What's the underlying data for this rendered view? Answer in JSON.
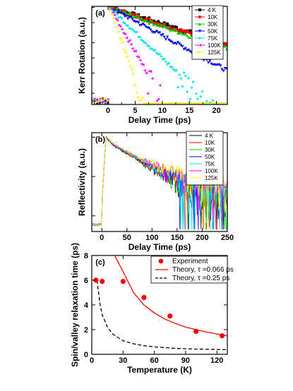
{
  "chart_data": [
    {
      "panel": "(a)",
      "type": "scatter",
      "ylabel": "Kerr Rotation (a.u.)",
      "xlabel": "Delay Time (ps)",
      "xlim": [
        -3,
        22
      ],
      "xticks": [
        0,
        5,
        10,
        15,
        20
      ],
      "yscale": "log",
      "legend": "top-right",
      "series": [
        {
          "name": "4 K",
          "color": "#000000",
          "marker": "square",
          "peak_x": 0.3,
          "decay_ps": 13.0,
          "points": [
            [
              -1.0,
              0.02
            ],
            [
              0.3,
              1.0
            ],
            [
              2,
              0.88
            ],
            [
              4,
              0.74
            ],
            [
              6,
              0.63
            ],
            [
              8,
              0.54
            ],
            [
              10,
              0.46
            ],
            [
              12,
              0.39
            ],
            [
              14,
              0.33
            ],
            [
              16,
              0.29
            ],
            [
              18,
              0.25
            ],
            [
              20,
              0.21
            ],
            [
              22,
              0.18
            ]
          ]
        },
        {
          "name": "10K",
          "color": "#ff0000",
          "marker": "circle",
          "peak_x": 0.3,
          "decay_ps": 12.5,
          "points": [
            [
              0.3,
              1.0
            ],
            [
              2,
              0.87
            ],
            [
              4,
              0.73
            ],
            [
              6,
              0.62
            ],
            [
              8,
              0.52
            ],
            [
              10,
              0.44
            ],
            [
              12,
              0.38
            ],
            [
              14,
              0.32
            ],
            [
              16,
              0.28
            ],
            [
              18,
              0.24
            ],
            [
              20,
              0.2
            ],
            [
              22,
              0.17
            ]
          ]
        },
        {
          "name": "30K",
          "color": "#00cc00",
          "marker": "triangle-up",
          "peak_x": 0.3,
          "decay_ps": 11.5,
          "points": [
            [
              0.3,
              1.0
            ],
            [
              2,
              0.85
            ],
            [
              4,
              0.71
            ],
            [
              6,
              0.59
            ],
            [
              8,
              0.5
            ],
            [
              10,
              0.42
            ],
            [
              12,
              0.35
            ],
            [
              14,
              0.3
            ],
            [
              16,
              0.25
            ],
            [
              18,
              0.21
            ],
            [
              20,
              0.18
            ],
            [
              22,
              0.15
            ]
          ]
        },
        {
          "name": "50K",
          "color": "#0000ff",
          "marker": "triangle-down",
          "peak_x": 0.3,
          "decay_ps": 7.5,
          "points": [
            [
              0.3,
              1.0
            ],
            [
              2,
              0.78
            ],
            [
              4,
              0.59
            ],
            [
              6,
              0.45
            ],
            [
              8,
              0.35
            ],
            [
              10,
              0.27
            ],
            [
              12,
              0.2
            ],
            [
              14,
              0.16
            ],
            [
              16,
              0.12
            ],
            [
              18,
              0.09
            ],
            [
              20,
              0.07
            ]
          ]
        },
        {
          "name": "75K",
          "color": "#00e5e5",
          "marker": "diamond",
          "peak_x": 0.3,
          "decay_ps": 4.2,
          "points": [
            [
              0.3,
              1.0
            ],
            [
              2,
              0.67
            ],
            [
              4,
              0.39
            ],
            [
              6,
              0.24
            ],
            [
              8,
              0.15
            ],
            [
              10,
              0.09
            ],
            [
              12,
              0.05
            ],
            [
              14,
              0.035
            ],
            [
              16,
              0.028
            ]
          ]
        },
        {
          "name": "100K",
          "color": "#ff00ff",
          "marker": "triangle-left",
          "peak_x": 0.3,
          "decay_ps": 2.3,
          "points": [
            [
              0.3,
              1.0
            ],
            [
              1,
              0.74
            ],
            [
              2,
              0.45
            ],
            [
              3,
              0.3
            ],
            [
              4,
              0.2
            ],
            [
              5,
              0.13
            ],
            [
              6,
              0.08
            ],
            [
              7,
              0.05
            ],
            [
              8,
              0.03
            ]
          ]
        },
        {
          "name": "125K",
          "color": "#ffff00",
          "marker": "triangle-right",
          "peak_x": 0.3,
          "decay_ps": 1.5,
          "points": [
            [
              0.3,
              1.0
            ],
            [
              1,
              0.64
            ],
            [
              2,
              0.33
            ],
            [
              3,
              0.18
            ],
            [
              4,
              0.1
            ],
            [
              5,
              0.06
            ],
            [
              6,
              0.035
            ]
          ]
        }
      ]
    },
    {
      "panel": "(b)",
      "type": "line",
      "ylabel": "Reflectivity (a.u.)",
      "xlabel": "Delay Time (ps)",
      "xlim": [
        -20,
        250
      ],
      "xticks": [
        0,
        50,
        100,
        150,
        200,
        250
      ],
      "yscale": "log",
      "legend": "top-right",
      "series": [
        {
          "name": "4 K",
          "color": "#000000",
          "peak_x": 8,
          "values_at": [
            [
              0,
              0.02
            ],
            [
              8,
              1.0
            ],
            [
              25,
              0.6
            ],
            [
              50,
              0.38
            ],
            [
              100,
              0.16
            ],
            [
              150,
              0.08
            ],
            [
              200,
              0.04
            ],
            [
              250,
              0.025
            ]
          ]
        },
        {
          "name": "10K",
          "color": "#ff0000",
          "peak_x": 8,
          "values_at": [
            [
              0,
              0.02
            ],
            [
              8,
              1.0
            ],
            [
              25,
              0.6
            ],
            [
              50,
              0.38
            ],
            [
              100,
              0.16
            ],
            [
              150,
              0.08
            ],
            [
              200,
              0.045
            ],
            [
              250,
              0.03
            ]
          ]
        },
        {
          "name": "30K",
          "color": "#00cc00",
          "peak_x": 8,
          "values_at": [
            [
              0,
              0.02
            ],
            [
              8,
              1.0
            ],
            [
              25,
              0.62
            ],
            [
              50,
              0.4
            ],
            [
              100,
              0.17
            ],
            [
              150,
              0.085
            ],
            [
              200,
              0.05
            ],
            [
              250,
              0.03
            ]
          ]
        },
        {
          "name": "50K",
          "color": "#0000ff",
          "peak_x": 8,
          "values_at": [
            [
              0,
              0.02
            ],
            [
              8,
              1.0
            ],
            [
              25,
              0.62
            ],
            [
              50,
              0.41
            ],
            [
              100,
              0.18
            ],
            [
              150,
              0.09
            ],
            [
              200,
              0.05
            ],
            [
              250,
              0.035
            ]
          ]
        },
        {
          "name": "75K",
          "color": "#00e5e5",
          "peak_x": 8,
          "values_at": [
            [
              0,
              0.02
            ],
            [
              8,
              1.0
            ],
            [
              25,
              0.63
            ],
            [
              50,
              0.42
            ],
            [
              100,
              0.19
            ],
            [
              150,
              0.1
            ],
            [
              200,
              0.06
            ],
            [
              250,
              0.04
            ]
          ]
        },
        {
          "name": "100K",
          "color": "#ff00ff",
          "peak_x": 8,
          "values_at": [
            [
              0,
              0.02
            ],
            [
              8,
              1.0
            ],
            [
              25,
              0.64
            ],
            [
              50,
              0.43
            ],
            [
              100,
              0.2
            ],
            [
              150,
              0.11
            ],
            [
              200,
              0.065
            ],
            [
              250,
              0.045
            ]
          ]
        },
        {
          "name": "125K",
          "color": "#ffff00",
          "peak_x": 8,
          "values_at": [
            [
              0,
              0.02
            ],
            [
              8,
              1.0
            ],
            [
              25,
              0.65
            ],
            [
              50,
              0.44
            ],
            [
              100,
              0.21
            ],
            [
              150,
              0.12
            ],
            [
              200,
              0.07
            ],
            [
              250,
              0.05
            ]
          ]
        }
      ]
    },
    {
      "panel": "(c)",
      "type": "scatter",
      "ylabel": "Spin/valley relaxation time (ps)",
      "xlabel": "Temperature (K)",
      "xlim": [
        0,
        130
      ],
      "ylim": [
        0,
        8
      ],
      "xticks": [
        0,
        30,
        60,
        90,
        120
      ],
      "yticks": [
        0,
        2,
        4,
        6,
        8
      ],
      "legend": "top-right",
      "series": [
        {
          "name": "Experiment",
          "color": "#ff0000",
          "style": "markers",
          "points": [
            [
              4,
              6.0
            ],
            [
              10,
              5.9
            ],
            [
              30,
              5.9
            ],
            [
              50,
              4.6
            ],
            [
              75,
              3.1
            ],
            [
              100,
              1.85
            ],
            [
              125,
              1.5
            ]
          ]
        },
        {
          "name": "Theory, τ =0.066 ps",
          "color": "#ff0000",
          "style": "solid",
          "points": [
            [
              22,
              8.0
            ],
            [
              30,
              6.7
            ],
            [
              40,
              5.0
            ],
            [
              50,
              4.0
            ],
            [
              60,
              3.35
            ],
            [
              70,
              2.85
            ],
            [
              80,
              2.5
            ],
            [
              90,
              2.2
            ],
            [
              100,
              2.0
            ],
            [
              110,
              1.8
            ],
            [
              120,
              1.65
            ],
            [
              130,
              1.5
            ]
          ]
        },
        {
          "name": "Theory, τ =0.25 ps",
          "color": "#000000",
          "style": "dashed",
          "points": [
            [
              5,
              6.0
            ],
            [
              8,
              4.0
            ],
            [
              10,
              3.2
            ],
            [
              15,
              2.2
            ],
            [
              20,
              1.65
            ],
            [
              30,
              1.1
            ],
            [
              40,
              0.85
            ],
            [
              50,
              0.7
            ],
            [
              60,
              0.6
            ],
            [
              80,
              0.48
            ],
            [
              100,
              0.42
            ],
            [
              130,
              0.38
            ]
          ]
        }
      ]
    }
  ]
}
